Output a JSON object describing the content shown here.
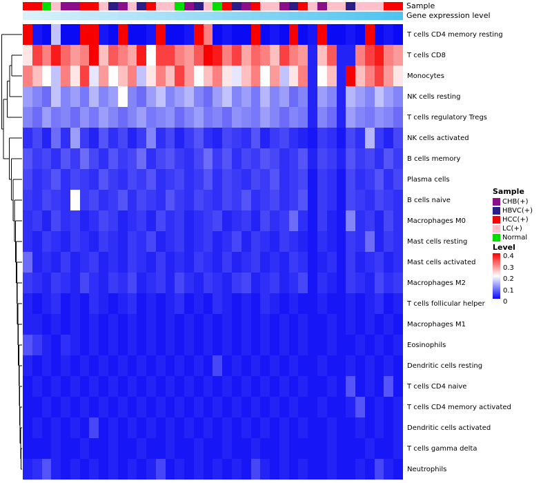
{
  "annotations": {
    "sample_label": "Sample",
    "expression_label": "Gene expression level",
    "sample_values": [
      "HCC",
      "HCC",
      "Normal",
      "LC",
      "CHB",
      "CHB",
      "HCC",
      "HCC",
      "LC",
      "HBVC",
      "CHB",
      "LC",
      "HBVC",
      "HCC",
      "LC",
      "LC",
      "Normal",
      "CHB",
      "HBVC",
      "LC",
      "Normal",
      "HCC",
      "HBVC",
      "CHB",
      "HCC",
      "LC",
      "LC",
      "CHB",
      "HBVC",
      "HCC",
      "LC",
      "CHB",
      "LC",
      "LC",
      "HBVC",
      "LC",
      "LC",
      "LC",
      "HCC",
      "HCC"
    ],
    "sample_colors": {
      "CHB": "#8b0f8b",
      "HBVC": "#2d1d86",
      "HCC": "#fb0000",
      "LC": "#ffc0cb",
      "Normal": "#00dd00"
    },
    "expression_values": [
      0.02,
      0.04,
      0.07,
      0.09,
      0.12,
      0.14,
      0.17,
      0.19,
      0.22,
      0.24,
      0.27,
      0.29,
      0.32,
      0.34,
      0.37,
      0.39,
      0.42,
      0.44,
      0.47,
      0.49,
      0.52,
      0.54,
      0.57,
      0.59,
      0.62,
      0.64,
      0.67,
      0.69,
      0.72,
      0.74,
      0.77,
      0.79,
      0.82,
      0.84,
      0.87,
      0.89,
      0.92,
      0.94,
      0.97,
      1.0
    ],
    "expression_gradient": {
      "low": "#dcf2fc",
      "high": "#4fc3f0"
    }
  },
  "chart_data": {
    "type": "heatmap",
    "title": "",
    "rows": [
      "T cells CD4 memory resting",
      "T cells CD8",
      "Monocytes",
      "NK cells resting",
      "T cells regulatory Tregs",
      "NK cells activated",
      "B cells memory",
      "Plasma cells",
      "B cells naive",
      "Macrophages M0",
      "Mast cells resting",
      "Mast cells activated",
      "Macrophages M2",
      "T cells follicular helper",
      "Macrophages M1",
      "Eosinophils",
      "Dendritic cells resting",
      "T cells CD4 naive",
      "T cells CD4 memory activated",
      "Dendritic cells activated",
      "T cells gamma delta",
      "Neutrophils"
    ],
    "n_columns": 40,
    "colormap": {
      "min": 0,
      "mid": 0.2,
      "max": 0.4,
      "min_color": "#0a0af5",
      "mid_color": "#ffffff",
      "max_color": "#f80000"
    },
    "values": [
      [
        0.45,
        0.01,
        0,
        0.15,
        0,
        0,
        0.45,
        0.45,
        0.01,
        0,
        0.45,
        0,
        0,
        0.01,
        0.45,
        0,
        0,
        0.01,
        0.45,
        0.3,
        0,
        0.01,
        0,
        0,
        0.45,
        0,
        0.01,
        0,
        0.45,
        0,
        0.01,
        0.45,
        0,
        0,
        0.01,
        0,
        0.45,
        0,
        0.01,
        0
      ],
      [
        0.22,
        0.35,
        0.3,
        0.38,
        0.32,
        0.28,
        0.3,
        0.42,
        0.25,
        0.33,
        0.3,
        0.27,
        0.38,
        0.2,
        0.35,
        0.35,
        0.3,
        0.28,
        0.33,
        0.4,
        0.38,
        0.3,
        0.35,
        0.27,
        0.32,
        0.3,
        0.25,
        0.35,
        0.3,
        0.28,
        0.02,
        0.25,
        0.33,
        0.02,
        0.02,
        0.3,
        0.35,
        0.38,
        0.3,
        0.28
      ],
      [
        0.3,
        0.25,
        0.2,
        0.15,
        0.3,
        0.22,
        0.35,
        0.18,
        0.28,
        0.2,
        0.25,
        0.3,
        0.15,
        0.22,
        0.3,
        0.25,
        0.35,
        0.28,
        0.2,
        0.25,
        0.3,
        0.22,
        0.18,
        0.25,
        0.3,
        0.2,
        0.28,
        0.15,
        0.22,
        0.3,
        0.02,
        0.2,
        0.25,
        0.02,
        0.45,
        0.25,
        0.3,
        0.35,
        0.28,
        0.22
      ],
      [
        0.12,
        0.1,
        0.08,
        0.15,
        0.1,
        0.12,
        0.09,
        0.14,
        0.1,
        0.12,
        0.2,
        0.1,
        0.08,
        0.12,
        0.15,
        0.1,
        0.12,
        0.14,
        0.1,
        0.08,
        0.12,
        0.15,
        0.1,
        0.12,
        0.09,
        0.14,
        0.1,
        0.12,
        0.08,
        0.1,
        0.02,
        0.12,
        0.1,
        0.02,
        0.14,
        0.12,
        0.1,
        0.15,
        0.12,
        0.1
      ],
      [
        0.1,
        0.08,
        0.12,
        0.09,
        0.1,
        0.08,
        0.11,
        0.09,
        0.12,
        0.1,
        0.08,
        0.1,
        0.12,
        0.09,
        0.1,
        0.11,
        0.08,
        0.1,
        0.12,
        0.09,
        0.1,
        0.08,
        0.11,
        0.1,
        0.09,
        0.12,
        0.1,
        0.08,
        0.1,
        0.09,
        0.02,
        0.1,
        0.08,
        0.02,
        0.12,
        0.1,
        0.09,
        0.11,
        0.1,
        0.08
      ],
      [
        0.03,
        0.05,
        0.02,
        0.08,
        0.03,
        0.12,
        0.04,
        0.02,
        0.06,
        0.03,
        0.05,
        0.02,
        0.04,
        0.1,
        0.03,
        0.05,
        0.02,
        0.04,
        0.06,
        0.03,
        0.02,
        0.05,
        0.04,
        0.03,
        0.06,
        0.02,
        0.04,
        0.05,
        0.03,
        0.02,
        0.01,
        0.04,
        0.03,
        0.01,
        0.05,
        0.03,
        0.14,
        0.04,
        0.02,
        0.05
      ],
      [
        0.06,
        0.04,
        0.05,
        0.03,
        0.06,
        0.04,
        0.08,
        0.05,
        0.03,
        0.06,
        0.04,
        0.05,
        0.08,
        0.03,
        0.05,
        0.06,
        0.04,
        0.03,
        0.05,
        0.08,
        0.04,
        0.06,
        0.03,
        0.05,
        0.04,
        0.06,
        0.05,
        0.03,
        0.04,
        0.06,
        0.02,
        0.05,
        0.04,
        0.02,
        0.06,
        0.04,
        0.05,
        0.03,
        0.06,
        0.04
      ],
      [
        0.05,
        0.03,
        0.04,
        0.06,
        0.03,
        0.05,
        0.04,
        0.03,
        0.06,
        0.04,
        0.03,
        0.05,
        0.04,
        0.06,
        0.03,
        0.04,
        0.05,
        0.03,
        0.04,
        0.06,
        0.03,
        0.05,
        0.04,
        0.03,
        0.05,
        0.04,
        0.06,
        0.03,
        0.04,
        0.05,
        0.01,
        0.04,
        0.03,
        0.01,
        0.05,
        0.03,
        0.04,
        0.06,
        0.03,
        0.05
      ],
      [
        0.04,
        0.03,
        0.05,
        0.04,
        0.03,
        0.2,
        0.04,
        0.05,
        0.03,
        0.04,
        0.06,
        0.03,
        0.05,
        0.04,
        0.03,
        0.06,
        0.04,
        0.03,
        0.05,
        0.04,
        0.03,
        0.05,
        0.04,
        0.06,
        0.03,
        0.04,
        0.05,
        0.03,
        0.04,
        0.06,
        0.01,
        0.04,
        0.03,
        0.01,
        0.05,
        0.04,
        0.03,
        0.05,
        0.04,
        0.03
      ],
      [
        0.03,
        0.04,
        0.02,
        0.05,
        0.03,
        0.04,
        0.02,
        0.03,
        0.05,
        0.04,
        0.02,
        0.03,
        0.04,
        0.02,
        0.05,
        0.03,
        0.04,
        0.02,
        0.03,
        0.04,
        0.05,
        0.02,
        0.03,
        0.04,
        0.02,
        0.05,
        0.03,
        0.04,
        0.08,
        0.03,
        0.01,
        0.04,
        0.02,
        0.01,
        0.1,
        0.03,
        0.04,
        0.02,
        0.05,
        0.03
      ],
      [
        0.03,
        0.02,
        0.04,
        0.03,
        0.02,
        0.04,
        0.03,
        0.02,
        0.04,
        0.03,
        0.02,
        0.04,
        0.03,
        0.05,
        0.02,
        0.03,
        0.04,
        0.02,
        0.03,
        0.04,
        0.02,
        0.03,
        0.05,
        0.02,
        0.04,
        0.03,
        0.02,
        0.04,
        0.03,
        0.02,
        0.01,
        0.03,
        0.02,
        0.01,
        0.04,
        0.03,
        0.08,
        0.02,
        0.04,
        0.03
      ],
      [
        0.08,
        0.02,
        0.03,
        0.02,
        0.04,
        0.02,
        0.03,
        0.04,
        0.02,
        0.03,
        0.02,
        0.04,
        0.03,
        0.02,
        0.04,
        0.02,
        0.03,
        0.02,
        0.04,
        0.03,
        0.02,
        0.04,
        0.02,
        0.03,
        0.04,
        0.02,
        0.03,
        0.02,
        0.04,
        0.03,
        0.01,
        0.02,
        0.03,
        0.01,
        0.04,
        0.02,
        0.03,
        0.04,
        0.02,
        0.03
      ],
      [
        0.04,
        0.03,
        0.02,
        0.04,
        0.03,
        0.02,
        0.05,
        0.03,
        0.02,
        0.04,
        0.03,
        0.05,
        0.02,
        0.03,
        0.04,
        0.02,
        0.05,
        0.03,
        0.02,
        0.04,
        0.03,
        0.02,
        0.04,
        0.05,
        0.02,
        0.03,
        0.04,
        0.02,
        0.03,
        0.05,
        0.01,
        0.03,
        0.02,
        0.01,
        0.04,
        0.03,
        0.02,
        0.05,
        0.03,
        0.04
      ],
      [
        0.02,
        0.01,
        0.02,
        0.03,
        0.01,
        0.02,
        0.01,
        0.03,
        0.02,
        0.01,
        0.02,
        0.03,
        0.01,
        0.02,
        0.01,
        0.02,
        0.03,
        0.01,
        0.02,
        0.01,
        0.03,
        0.02,
        0.01,
        0.02,
        0.01,
        0.03,
        0.02,
        0.01,
        0.02,
        0.01,
        0.01,
        0.02,
        0.01,
        0.01,
        0.02,
        0.01,
        0.02,
        0.03,
        0.01,
        0.02
      ],
      [
        0.02,
        0.02,
        0.01,
        0.02,
        0.01,
        0.02,
        0.01,
        0.02,
        0.01,
        0.02,
        0.01,
        0.02,
        0.01,
        0.02,
        0.01,
        0.02,
        0.01,
        0.02,
        0.01,
        0.02,
        0.01,
        0.02,
        0.01,
        0.02,
        0.01,
        0.02,
        0.01,
        0.02,
        0.01,
        0.02,
        0.01,
        0.01,
        0.02,
        0.01,
        0.02,
        0.01,
        0.02,
        0.01,
        0.02,
        0.01
      ],
      [
        0.06,
        0.04,
        0.02,
        0.01,
        0.03,
        0.02,
        0.01,
        0.02,
        0.01,
        0.02,
        0.01,
        0.02,
        0.01,
        0.02,
        0.01,
        0.02,
        0.01,
        0.02,
        0.01,
        0.02,
        0.01,
        0.02,
        0.01,
        0.02,
        0.01,
        0.02,
        0.01,
        0.02,
        0.01,
        0.02,
        0.01,
        0.01,
        0.02,
        0.01,
        0.01,
        0.02,
        0.01,
        0.02,
        0.01,
        0.02
      ],
      [
        0.02,
        0.01,
        0.02,
        0.01,
        0.02,
        0.01,
        0.02,
        0.01,
        0.02,
        0.01,
        0.02,
        0.01,
        0.02,
        0.01,
        0.02,
        0.01,
        0.02,
        0.01,
        0.02,
        0.01,
        0.05,
        0.01,
        0.02,
        0.01,
        0.02,
        0.01,
        0.02,
        0.01,
        0.02,
        0.01,
        0.01,
        0.02,
        0.01,
        0.01,
        0.02,
        0.01,
        0.02,
        0.01,
        0.02,
        0.01
      ],
      [
        0.01,
        0.02,
        0.01,
        0.02,
        0.01,
        0.02,
        0.01,
        0.02,
        0.01,
        0.02,
        0.01,
        0.02,
        0.01,
        0.02,
        0.01,
        0.02,
        0.01,
        0.02,
        0.01,
        0.02,
        0.01,
        0.02,
        0.01,
        0.02,
        0.01,
        0.02,
        0.01,
        0.02,
        0.01,
        0.02,
        0.01,
        0.01,
        0.02,
        0.01,
        0.06,
        0.01,
        0.02,
        0.01,
        0.06,
        0.01
      ],
      [
        0.01,
        0.01,
        0.02,
        0.01,
        0.02,
        0.01,
        0.02,
        0.01,
        0.02,
        0.01,
        0.02,
        0.01,
        0.02,
        0.01,
        0.02,
        0.01,
        0.02,
        0.01,
        0.02,
        0.01,
        0.02,
        0.01,
        0.02,
        0.01,
        0.02,
        0.01,
        0.02,
        0.01,
        0.02,
        0.01,
        0.01,
        0.02,
        0.01,
        0.01,
        0.02,
        0.06,
        0.01,
        0.02,
        0.01,
        0.02
      ],
      [
        0.01,
        0.02,
        0.01,
        0.02,
        0.01,
        0.02,
        0.01,
        0.05,
        0.01,
        0.02,
        0.01,
        0.02,
        0.01,
        0.02,
        0.01,
        0.02,
        0.01,
        0.02,
        0.01,
        0.02,
        0.01,
        0.02,
        0.01,
        0.02,
        0.01,
        0.02,
        0.01,
        0.02,
        0.01,
        0.02,
        0.01,
        0.01,
        0.02,
        0.01,
        0.01,
        0.02,
        0.01,
        0.02,
        0.01,
        0.02
      ],
      [
        0.01,
        0.01,
        0.01,
        0.02,
        0.01,
        0.01,
        0.02,
        0.01,
        0.01,
        0.02,
        0.01,
        0.01,
        0.02,
        0.01,
        0.01,
        0.02,
        0.01,
        0.01,
        0.02,
        0.01,
        0.01,
        0.02,
        0.01,
        0.01,
        0.02,
        0.01,
        0.01,
        0.02,
        0.01,
        0.01,
        0.01,
        0.01,
        0.02,
        0.01,
        0.01,
        0.01,
        0.02,
        0.01,
        0.01,
        0.02
      ],
      [
        0.02,
        0.03,
        0.06,
        0.02,
        0.01,
        0.02,
        0.01,
        0.02,
        0.01,
        0.02,
        0.01,
        0.02,
        0.01,
        0.02,
        0.05,
        0.01,
        0.02,
        0.01,
        0.02,
        0.01,
        0.02,
        0.01,
        0.02,
        0.01,
        0.05,
        0.02,
        0.01,
        0.02,
        0.01,
        0.02,
        0.01,
        0.01,
        0.02,
        0.01,
        0.01,
        0.02,
        0.01,
        0.05,
        0.02,
        0.01
      ]
    ],
    "dendrogram": [
      0,
      [
        [
          [
            [
              1,
              2,
              0.52
            ],
            3,
            0.42
          ],
          4,
          0.3
        ],
        [
          5,
          [
            6,
            [
              7,
              [
                8,
                [
                  9,
                  [
                    10,
                    [
                      11,
                      [
                        12,
                        [
                          13,
                          [
                            14,
                            [
                              15,
                              [
                                16,
                                [
                                  17,
                                  [
                                    18,
                                    [
                                      19,
                                      [
                                        20,
                                        21,
                                        0.95
                                      ],
                                      0.93
                                    ],
                                    0.91
                                  ],
                                  0.89
                                ],
                                0.87
                              ],
                              0.85
                            ],
                            0.83
                          ],
                          0.8
                        ],
                        0.78
                      ],
                      0.76
                    ],
                    0.73
                  ],
                  0.7
                ],
                0.65
              ],
              0.58
            ],
            0.5
          ],
          0.4
        ],
        0.13
      ],
      0.05
    ]
  },
  "legends": {
    "sample": {
      "title": "Sample",
      "entries": [
        {
          "label": "CHB(+)",
          "color": "#8b0f8b"
        },
        {
          "label": "HBVC(+)",
          "color": "#2d1d86"
        },
        {
          "label": "HCC(+)",
          "color": "#fb0000"
        },
        {
          "label": "LC(+)",
          "color": "#ffc0cb"
        },
        {
          "label": "Normal",
          "color": "#00dd00"
        }
      ]
    },
    "level": {
      "title": "Level",
      "ticks": [
        "0.4",
        "0.3",
        "0.2",
        "0.1",
        "0"
      ],
      "max_color": "#f80000",
      "mid_color": "#ffffff",
      "min_color": "#0a0af5"
    }
  }
}
